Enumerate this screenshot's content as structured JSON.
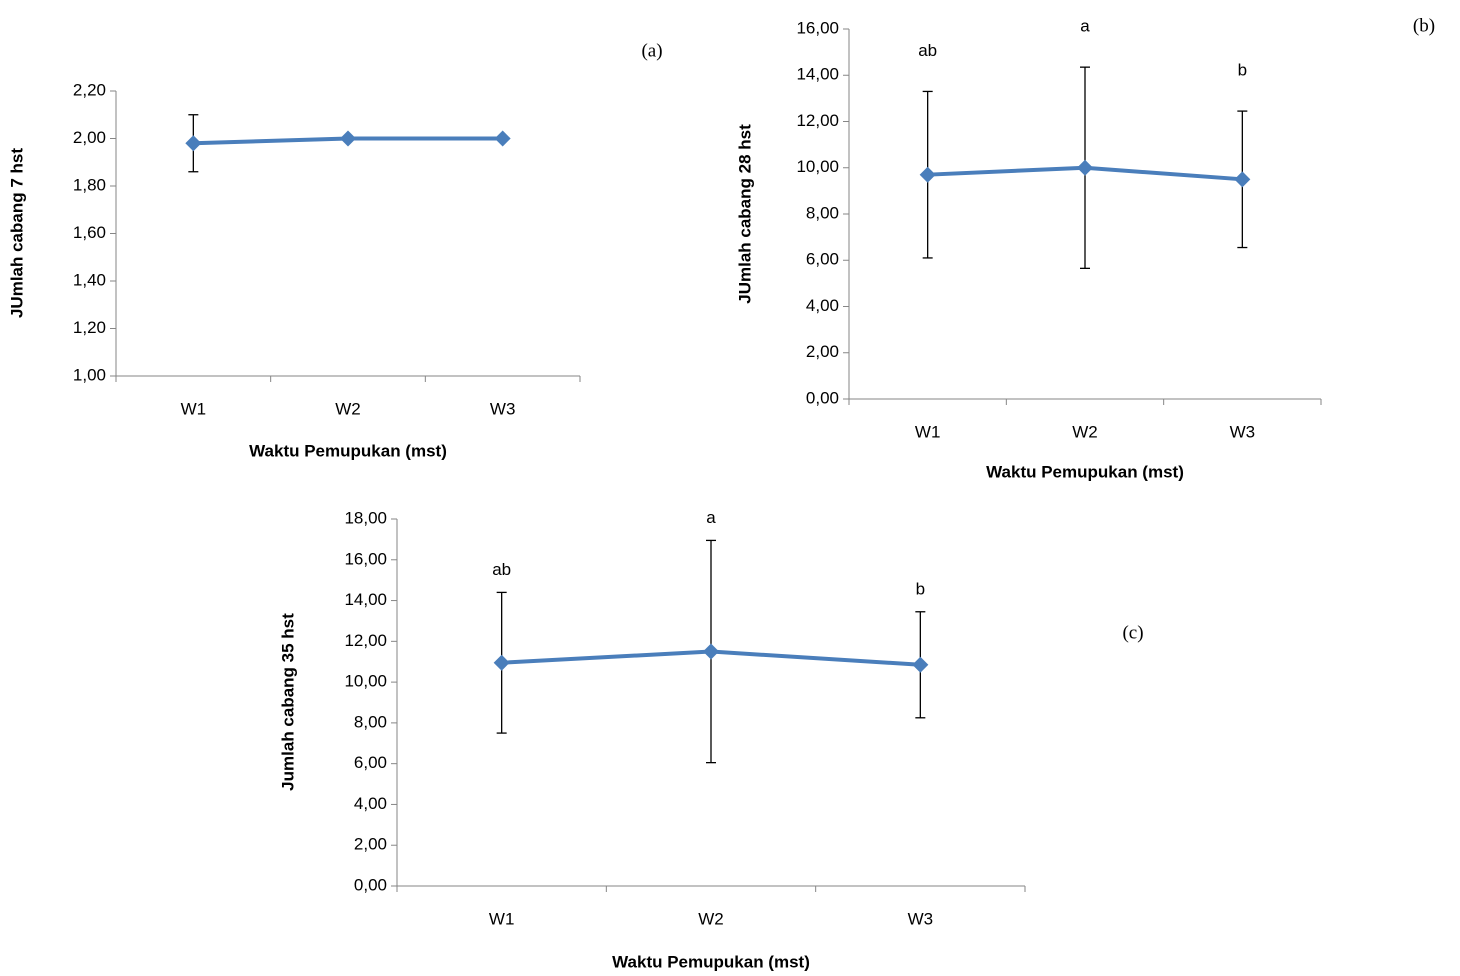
{
  "chart_data": [
    {
      "type": "line",
      "panel_label": "(a)",
      "y_label": "JUmlah cabang 7 hst",
      "x_label": "Waktu Pemupukan (mst)",
      "categories": [
        "W1",
        "W2",
        "W3"
      ],
      "series": [
        {
          "color": "#4a7ebb",
          "values": [
            1.98,
            2.0,
            2.0
          ],
          "errors": [
            0.12,
            null,
            null
          ]
        }
      ],
      "ylim": [
        1.0,
        2.2
      ],
      "yticks": [
        {
          "value": 1.0,
          "label": "1,00"
        },
        {
          "value": 1.2,
          "label": "1,20"
        },
        {
          "value": 1.4,
          "label": "1,40"
        },
        {
          "value": 1.6,
          "label": "1,60"
        },
        {
          "value": 1.8,
          "label": "1,80"
        },
        {
          "value": 2.0,
          "label": "2,00"
        },
        {
          "value": 2.2,
          "label": "2,20"
        }
      ]
    },
    {
      "type": "line",
      "panel_label": "(b)",
      "y_label": "JUmlah cabang 28 hst",
      "x_label": "Waktu Pemupukan (mst)",
      "categories": [
        "W1",
        "W2",
        "W3"
      ],
      "series": [
        {
          "color": "#4a7ebb",
          "values": [
            9.7,
            10.0,
            9.5
          ],
          "errors": [
            3.6,
            4.35,
            2.95
          ]
        }
      ],
      "annotations": [
        "ab",
        "a",
        "b"
      ],
      "ylim": [
        0,
        16
      ],
      "yticks": [
        {
          "value": 0,
          "label": "0,00"
        },
        {
          "value": 2,
          "label": "2,00"
        },
        {
          "value": 4,
          "label": "4,00"
        },
        {
          "value": 6,
          "label": "6,00"
        },
        {
          "value": 8,
          "label": "8,00"
        },
        {
          "value": 10,
          "label": "10,00"
        },
        {
          "value": 12,
          "label": "12,00"
        },
        {
          "value": 14,
          "label": "14,00"
        },
        {
          "value": 16,
          "label": "16,00"
        }
      ]
    },
    {
      "type": "line",
      "panel_label": "(c)",
      "y_label": "Jumlah cabang 35 hst",
      "x_label": "Waktu Pemupukan (mst)",
      "categories": [
        "W1",
        "W2",
        "W3"
      ],
      "series": [
        {
          "color": "#4a7ebb",
          "values": [
            10.95,
            11.5,
            10.85
          ],
          "errors": [
            3.45,
            5.45,
            2.6
          ]
        }
      ],
      "annotations": [
        "ab",
        "a",
        "b"
      ],
      "ylim": [
        0,
        18
      ],
      "yticks": [
        {
          "value": 0,
          "label": "0,00"
        },
        {
          "value": 2,
          "label": "2,00"
        },
        {
          "value": 4,
          "label": "4,00"
        },
        {
          "value": 6,
          "label": "6,00"
        },
        {
          "value": 8,
          "label": "8,00"
        },
        {
          "value": 10,
          "label": "10,00"
        },
        {
          "value": 12,
          "label": "12,00"
        },
        {
          "value": 14,
          "label": "14,00"
        },
        {
          "value": 16,
          "label": "16,00"
        },
        {
          "value": 18,
          "label": "18,00"
        }
      ]
    }
  ]
}
